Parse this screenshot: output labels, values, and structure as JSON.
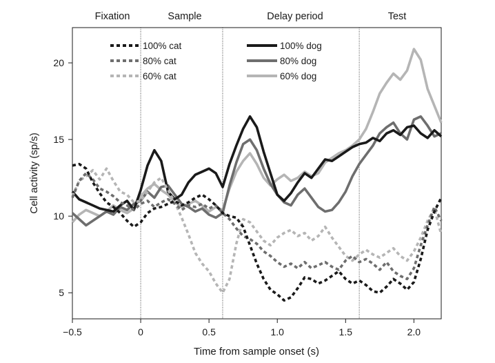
{
  "chart_data": {
    "type": "line",
    "title": "",
    "xlabel": "Time from sample onset (s)",
    "ylabel": "Cell activity (sp/s)",
    "xlim": [
      -0.5,
      2.2
    ],
    "ylim": [
      3.3,
      22.3
    ],
    "xticks": [
      -0.5,
      0,
      0.5,
      1.0,
      1.5,
      2.0
    ],
    "xtick_labels": [
      "−0.5",
      "0",
      "0.5",
      "1.0",
      "1.5",
      "2.0"
    ],
    "yticks": [
      5,
      10,
      15,
      20
    ],
    "ytick_labels": [
      "5",
      "10",
      "15",
      "20"
    ],
    "grid": false,
    "legend_position": "top",
    "epoch_boundaries": [
      0,
      0.6,
      1.6
    ],
    "epochs": [
      {
        "label": "Fixation",
        "center": -0.25
      },
      {
        "label": "Sample",
        "center": 0.32
      },
      {
        "label": "Delay period",
        "center": 1.13
      },
      {
        "label": "Test",
        "center": 1.88
      }
    ],
    "series": [
      {
        "name": "100% cat",
        "color": "#1a1a1a",
        "style": "dashed",
        "x": [
          -0.5,
          -0.45,
          -0.4,
          -0.35,
          -0.3,
          -0.25,
          -0.2,
          -0.15,
          -0.1,
          -0.05,
          0,
          0.05,
          0.1,
          0.15,
          0.2,
          0.25,
          0.3,
          0.35,
          0.4,
          0.45,
          0.5,
          0.55,
          0.6,
          0.65,
          0.7,
          0.75,
          0.8,
          0.85,
          0.9,
          0.95,
          1.0,
          1.05,
          1.1,
          1.15,
          1.2,
          1.25,
          1.3,
          1.35,
          1.4,
          1.45,
          1.5,
          1.55,
          1.6,
          1.65,
          1.7,
          1.75,
          1.8,
          1.85,
          1.9,
          1.95,
          2.0,
          2.05,
          2.1,
          2.15,
          2.2
        ],
        "y": [
          13.3,
          13.4,
          13.1,
          12.2,
          11.5,
          10.9,
          10.6,
          10.2,
          9.7,
          9.3,
          9.6,
          10.2,
          10.5,
          10.6,
          10.8,
          11.0,
          10.7,
          10.9,
          11.2,
          11.4,
          11.1,
          10.7,
          10.2,
          10.0,
          9.9,
          9.3,
          8.1,
          6.9,
          5.9,
          5.2,
          4.9,
          4.5,
          4.7,
          5.3,
          6.0,
          5.9,
          5.6,
          5.8,
          6.1,
          6.4,
          5.9,
          5.6,
          5.8,
          5.5,
          5.1,
          5.0,
          5.4,
          5.9,
          5.6,
          5.2,
          5.7,
          7.2,
          9.1,
          10.3,
          11.2
        ]
      },
      {
        "name": "80% cat",
        "color": "#6e6e6e",
        "style": "dashed",
        "x": [
          -0.5,
          -0.45,
          -0.4,
          -0.35,
          -0.3,
          -0.25,
          -0.2,
          -0.15,
          -0.1,
          -0.05,
          0,
          0.05,
          0.1,
          0.15,
          0.2,
          0.25,
          0.3,
          0.35,
          0.4,
          0.45,
          0.5,
          0.55,
          0.6,
          0.65,
          0.7,
          0.75,
          0.8,
          0.85,
          0.9,
          0.95,
          1.0,
          1.05,
          1.1,
          1.15,
          1.2,
          1.25,
          1.3,
          1.35,
          1.4,
          1.45,
          1.5,
          1.55,
          1.6,
          1.65,
          1.7,
          1.75,
          1.8,
          1.85,
          1.9,
          1.95,
          2.0,
          2.05,
          2.1,
          2.15,
          2.2
        ],
        "y": [
          11.2,
          12.3,
          12.8,
          12.4,
          11.8,
          11.6,
          11.3,
          10.9,
          10.7,
          10.4,
          10.8,
          11.0,
          10.6,
          10.9,
          11.1,
          10.8,
          10.4,
          10.7,
          10.6,
          10.8,
          10.5,
          10.7,
          10.2,
          9.8,
          9.2,
          8.7,
          8.5,
          8.2,
          7.7,
          7.4,
          7.0,
          6.7,
          6.9,
          6.6,
          7.0,
          6.6,
          6.8,
          7.0,
          6.7,
          6.5,
          7.1,
          7.4,
          7.0,
          7.2,
          6.9,
          6.5,
          7.0,
          6.4,
          6.1,
          5.9,
          6.6,
          8.1,
          9.4,
          10.6,
          9.7
        ]
      },
      {
        "name": "60% cat",
        "color": "#b5b5b5",
        "style": "dashed",
        "x": [
          -0.5,
          -0.45,
          -0.4,
          -0.35,
          -0.3,
          -0.25,
          -0.2,
          -0.15,
          -0.1,
          -0.05,
          0,
          0.05,
          0.1,
          0.15,
          0.2,
          0.25,
          0.3,
          0.35,
          0.4,
          0.45,
          0.5,
          0.55,
          0.6,
          0.65,
          0.7,
          0.75,
          0.8,
          0.85,
          0.9,
          0.95,
          1.0,
          1.05,
          1.1,
          1.15,
          1.2,
          1.25,
          1.3,
          1.35,
          1.4,
          1.45,
          1.5,
          1.55,
          1.6,
          1.65,
          1.7,
          1.75,
          1.8,
          1.85,
          1.9,
          1.95,
          2.0,
          2.05,
          2.1,
          2.15,
          2.2
        ],
        "y": [
          11.3,
          12.3,
          12.6,
          13.0,
          12.4,
          13.1,
          12.3,
          11.6,
          11.4,
          10.9,
          11.0,
          11.6,
          12.2,
          12.5,
          11.7,
          10.9,
          9.9,
          8.8,
          7.6,
          6.9,
          6.4,
          5.6,
          5.0,
          5.9,
          8.2,
          9.8,
          9.6,
          9.0,
          8.4,
          8.1,
          8.6,
          8.9,
          9.1,
          8.7,
          8.9,
          8.4,
          8.7,
          9.3,
          8.6,
          8.0,
          7.4,
          7.1,
          7.5,
          7.8,
          7.5,
          7.3,
          7.6,
          7.9,
          7.4,
          7.1,
          7.7,
          8.6,
          9.7,
          10.5,
          8.8
        ]
      },
      {
        "name": "100% dog",
        "color": "#1a1a1a",
        "style": "solid",
        "x": [
          -0.5,
          -0.45,
          -0.4,
          -0.35,
          -0.3,
          -0.25,
          -0.2,
          -0.15,
          -0.1,
          -0.05,
          0,
          0.05,
          0.1,
          0.15,
          0.2,
          0.25,
          0.3,
          0.35,
          0.4,
          0.45,
          0.5,
          0.55,
          0.6,
          0.65,
          0.7,
          0.75,
          0.8,
          0.85,
          0.9,
          0.95,
          1.0,
          1.05,
          1.1,
          1.15,
          1.2,
          1.25,
          1.3,
          1.35,
          1.4,
          1.45,
          1.5,
          1.55,
          1.6,
          1.65,
          1.7,
          1.75,
          1.8,
          1.85,
          1.9,
          1.95,
          2.0,
          2.05,
          2.1,
          2.15,
          2.2
        ],
        "y": [
          11.6,
          11.1,
          10.9,
          10.7,
          10.5,
          10.4,
          10.3,
          10.7,
          11.0,
          10.4,
          11.7,
          13.3,
          14.3,
          13.6,
          11.6,
          11.1,
          11.4,
          12.2,
          12.7,
          12.9,
          13.1,
          12.8,
          11.9,
          13.4,
          14.6,
          15.7,
          16.5,
          15.8,
          14.2,
          12.8,
          11.4,
          11.0,
          11.5,
          12.2,
          12.8,
          12.5,
          13.1,
          13.7,
          13.6,
          13.9,
          14.2,
          14.5,
          14.7,
          14.8,
          15.1,
          14.9,
          15.4,
          15.6,
          15.3,
          15.8,
          15.9,
          15.4,
          15.1,
          15.6,
          15.2
        ]
      },
      {
        "name": "80% dog",
        "color": "#6e6e6e",
        "style": "solid",
        "x": [
          -0.5,
          -0.45,
          -0.4,
          -0.35,
          -0.3,
          -0.25,
          -0.2,
          -0.15,
          -0.1,
          -0.05,
          0,
          0.05,
          0.1,
          0.15,
          0.2,
          0.25,
          0.3,
          0.35,
          0.4,
          0.45,
          0.5,
          0.55,
          0.6,
          0.65,
          0.7,
          0.75,
          0.8,
          0.85,
          0.9,
          0.95,
          1.0,
          1.05,
          1.1,
          1.15,
          1.2,
          1.25,
          1.3,
          1.35,
          1.4,
          1.45,
          1.5,
          1.55,
          1.6,
          1.65,
          1.7,
          1.75,
          1.8,
          1.85,
          1.9,
          1.95,
          2.0,
          2.05,
          2.1,
          2.15,
          2.2
        ],
        "y": [
          10.2,
          9.8,
          9.4,
          9.7,
          10.0,
          10.3,
          10.1,
          10.6,
          10.4,
          10.8,
          11.0,
          11.6,
          11.2,
          11.9,
          12.0,
          11.4,
          10.8,
          10.6,
          10.3,
          10.5,
          10.1,
          9.9,
          10.2,
          12.0,
          13.5,
          14.7,
          15.0,
          14.3,
          13.1,
          12.1,
          11.4,
          10.9,
          10.7,
          11.4,
          11.8,
          11.2,
          10.6,
          10.3,
          10.4,
          10.9,
          11.6,
          12.6,
          13.4,
          14.0,
          14.6,
          15.4,
          15.8,
          16.1,
          15.4,
          15.0,
          16.3,
          16.5,
          15.9,
          15.2,
          15.4
        ]
      },
      {
        "name": "60% dog",
        "color": "#b5b5b5",
        "style": "solid",
        "x": [
          -0.5,
          -0.45,
          -0.4,
          -0.35,
          -0.3,
          -0.25,
          -0.2,
          -0.15,
          -0.1,
          -0.05,
          0,
          0.05,
          0.1,
          0.15,
          0.2,
          0.25,
          0.3,
          0.35,
          0.4,
          0.45,
          0.5,
          0.55,
          0.6,
          0.65,
          0.7,
          0.75,
          0.8,
          0.85,
          0.9,
          0.95,
          1.0,
          1.05,
          1.1,
          1.15,
          1.2,
          1.25,
          1.3,
          1.35,
          1.4,
          1.45,
          1.5,
          1.55,
          1.6,
          1.65,
          1.7,
          1.75,
          1.8,
          1.85,
          1.9,
          1.95,
          2.0,
          2.05,
          2.1,
          2.15,
          2.2
        ],
        "y": [
          9.6,
          10.1,
          10.4,
          10.2,
          10.0,
          10.3,
          10.7,
          10.4,
          10.2,
          10.5,
          11.3,
          11.8,
          12.1,
          11.7,
          11.4,
          10.9,
          10.6,
          10.8,
          11.0,
          10.7,
          10.3,
          10.6,
          10.4,
          11.8,
          12.9,
          13.6,
          14.1,
          13.4,
          12.5,
          12.0,
          12.4,
          12.7,
          12.3,
          12.5,
          12.9,
          12.6,
          12.8,
          13.5,
          13.8,
          14.1,
          14.3,
          14.6,
          15.0,
          15.7,
          16.8,
          18.0,
          18.7,
          19.3,
          18.9,
          19.5,
          20.9,
          20.2,
          18.3,
          17.2,
          16.1
        ]
      }
    ]
  }
}
